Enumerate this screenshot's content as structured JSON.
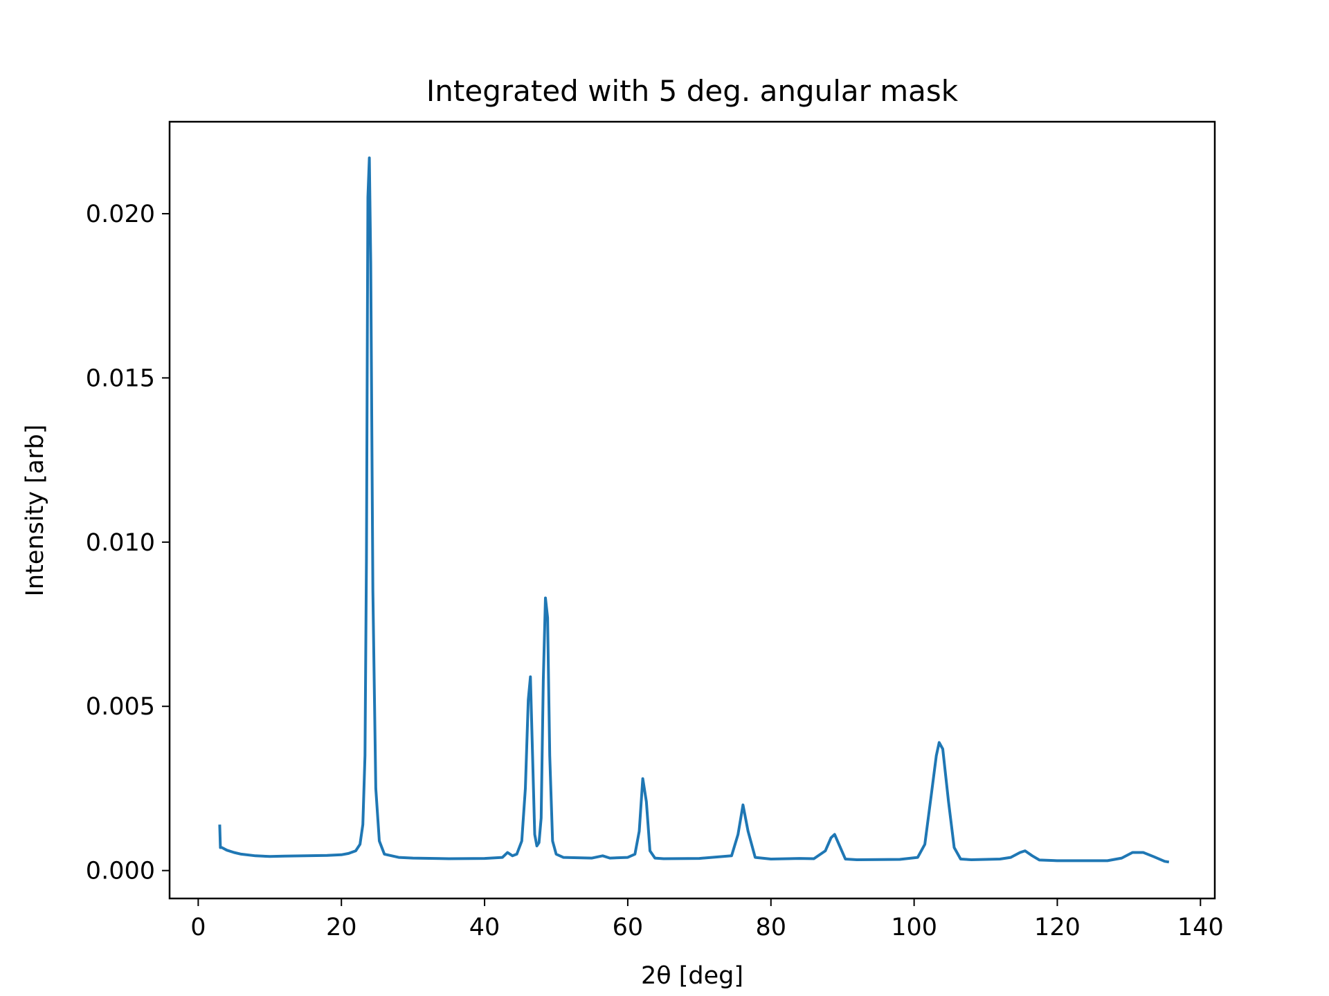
{
  "chart_data": {
    "type": "line",
    "title": "Integrated with 5 deg. angular mask",
    "xlabel": "2θ [deg]",
    "ylabel": "Intensity [arb]",
    "xlim": [
      -4,
      142
    ],
    "ylim": [
      -0.00085,
      0.0228
    ],
    "xticks": [
      0,
      20,
      40,
      60,
      80,
      100,
      120,
      140
    ],
    "xtick_labels": [
      "0",
      "20",
      "40",
      "60",
      "80",
      "100",
      "120",
      "140"
    ],
    "yticks": [
      0.0,
      0.005,
      0.01,
      0.015,
      0.02
    ],
    "ytick_labels": [
      "0.000",
      "0.005",
      "0.010",
      "0.015",
      "0.020"
    ],
    "grid": false,
    "series": [
      {
        "color": "#1f77b4",
        "x": [
          3.0,
          3.1,
          3.3,
          4.0,
          5.0,
          6.0,
          8.0,
          10.0,
          12.0,
          15.0,
          18.0,
          20.0,
          21.0,
          22.0,
          22.6,
          23.0,
          23.3,
          23.5,
          23.7,
          23.9,
          24.1,
          24.4,
          24.8,
          25.3,
          26.0,
          28.0,
          30.0,
          35.0,
          40.0,
          42.5,
          43.2,
          43.9,
          44.5,
          45.2,
          45.7,
          46.1,
          46.4,
          46.7,
          47.0,
          47.3,
          47.6,
          47.9,
          48.2,
          48.5,
          48.8,
          49.1,
          49.5,
          50.0,
          51.0,
          55.0,
          56.5,
          57.5,
          60.0,
          61.0,
          61.6,
          62.1,
          62.6,
          63.1,
          63.8,
          65.0,
          70.0,
          74.5,
          75.4,
          76.1,
          76.8,
          77.8,
          80.0,
          84.0,
          86.0,
          87.6,
          88.4,
          88.9,
          89.5,
          90.4,
          92.0,
          98.0,
          100.5,
          101.5,
          102.4,
          103.1,
          103.5,
          104.0,
          104.8,
          105.6,
          106.5,
          108.0,
          110.0,
          112.0,
          113.5,
          114.8,
          115.5,
          116.5,
          117.5,
          120.0,
          127.0,
          129.0,
          130.5,
          132.0,
          133.5,
          135.0,
          135.6
        ],
        "y": [
          0.0014,
          0.0007,
          0.0007,
          0.00062,
          0.00055,
          0.0005,
          0.00045,
          0.00043,
          0.00044,
          0.00045,
          0.00046,
          0.00048,
          0.00052,
          0.0006,
          0.0008,
          0.0014,
          0.0035,
          0.0095,
          0.0205,
          0.0217,
          0.0185,
          0.0085,
          0.0025,
          0.0009,
          0.0005,
          0.0004,
          0.00038,
          0.00036,
          0.00037,
          0.0004,
          0.00055,
          0.00045,
          0.0005,
          0.0009,
          0.0025,
          0.0052,
          0.0059,
          0.0035,
          0.0011,
          0.00075,
          0.00085,
          0.0016,
          0.0058,
          0.0083,
          0.0077,
          0.0035,
          0.0009,
          0.0005,
          0.0004,
          0.00038,
          0.00045,
          0.00038,
          0.0004,
          0.0005,
          0.0012,
          0.0028,
          0.0021,
          0.0006,
          0.00038,
          0.00036,
          0.00037,
          0.00045,
          0.0011,
          0.002,
          0.0012,
          0.0004,
          0.00035,
          0.00037,
          0.00036,
          0.0006,
          0.001,
          0.0011,
          0.0008,
          0.00035,
          0.00033,
          0.00034,
          0.0004,
          0.0008,
          0.0023,
          0.0035,
          0.0039,
          0.0037,
          0.0021,
          0.0007,
          0.00035,
          0.00033,
          0.00034,
          0.00035,
          0.0004,
          0.00055,
          0.0006,
          0.00045,
          0.00032,
          0.0003,
          0.0003,
          0.00038,
          0.00055,
          0.00055,
          0.00042,
          0.00028,
          0.00026
        ]
      }
    ]
  }
}
